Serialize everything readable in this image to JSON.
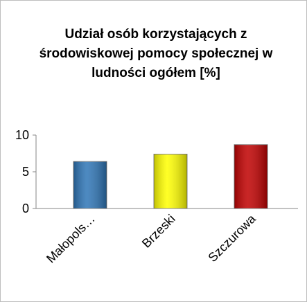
{
  "chart_data": {
    "type": "bar",
    "title": "Udział osób korzystających z środowiskowej pomocy społecznej w ludności ogółem [%]",
    "categories": [
      "Małopols…",
      "Brzeski",
      "Szczurowa"
    ],
    "values": [
      6.4,
      7.4,
      8.7
    ],
    "colors": [
      "#2e75b6",
      "#ffff00",
      "#c00000"
    ],
    "ylim": [
      0,
      10
    ],
    "yticks": [
      0,
      5,
      10
    ],
    "grid": false
  }
}
